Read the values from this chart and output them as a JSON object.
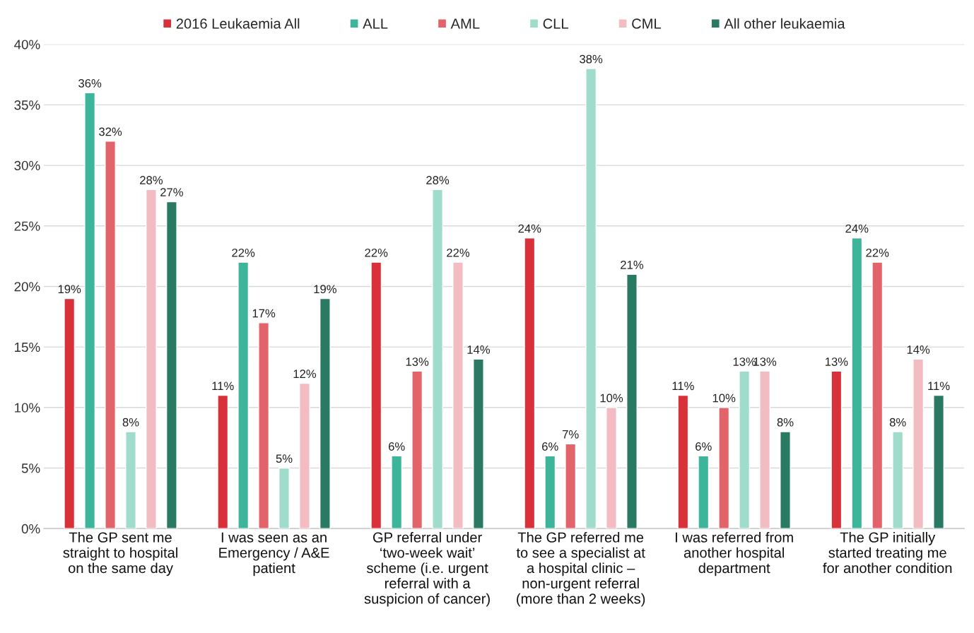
{
  "chart_data": {
    "type": "bar",
    "categories": [
      "The GP sent me\nstraight to hospital\non the same day",
      "I was seen as an\nEmergency / A&E\npatient",
      "GP referral under\n‘two-week wait’\nscheme (i.e. urgent\nreferral with a\nsuspicion of cancer)",
      "The GP referred me\nto see a specialist at\na hospital clinic –\nnon-urgent referral\n(more than 2 weeks)",
      "I was referred from\nanother hospital\ndepartment",
      "The GP initially\nstarted treating me\nfor another condition"
    ],
    "series": [
      {
        "name": "2016 Leukaemia All",
        "color": "#d9313a",
        "values": [
          19,
          11,
          22,
          24,
          11,
          13
        ],
        "value_labels": [
          "19%",
          "11%",
          "22%",
          "24%",
          "11%",
          "13%"
        ]
      },
      {
        "name": "ALL",
        "color": "#3cb59a",
        "values": [
          36,
          22,
          6,
          6,
          6,
          24
        ],
        "value_labels": [
          "36%",
          "22%",
          "6%",
          "6%",
          "6%",
          "24%"
        ]
      },
      {
        "name": "AML",
        "color": "#e2636a",
        "values": [
          32,
          17,
          13,
          7,
          10,
          22
        ],
        "value_labels": [
          "32%",
          "17%",
          "13%",
          "7%",
          "10%",
          "22%"
        ]
      },
      {
        "name": "CLL",
        "color": "#9fdccb",
        "values": [
          8,
          5,
          28,
          38,
          13,
          8
        ],
        "value_labels": [
          "8%",
          "5%",
          "28%",
          "38%",
          "13%",
          "8%"
        ]
      },
      {
        "name": "CML",
        "color": "#f2bcc2",
        "values": [
          28,
          12,
          22,
          10,
          13,
          14
        ],
        "value_labels": [
          "28%",
          "12%",
          "22%",
          "10%",
          "13%",
          "14%"
        ]
      },
      {
        "name": "All other leukaemia",
        "color": "#2a7a63",
        "values": [
          27,
          19,
          14,
          21,
          8,
          11
        ],
        "value_labels": [
          "27%",
          "19%",
          "14%",
          "21%",
          "8%",
          "11%"
        ]
      }
    ],
    "ylim": [
      0,
      40
    ],
    "yticks": [
      {
        "value": 0,
        "label": "0%"
      },
      {
        "value": 5,
        "label": "5%"
      },
      {
        "value": 10,
        "label": "10%"
      },
      {
        "value": 15,
        "label": "15%"
      },
      {
        "value": 20,
        "label": "20%"
      },
      {
        "value": 25,
        "label": "25%"
      },
      {
        "value": 30,
        "label": "30%"
      },
      {
        "value": 35,
        "label": "35%"
      },
      {
        "value": 40,
        "label": "40%"
      }
    ],
    "grid": "y",
    "legend": "top"
  }
}
